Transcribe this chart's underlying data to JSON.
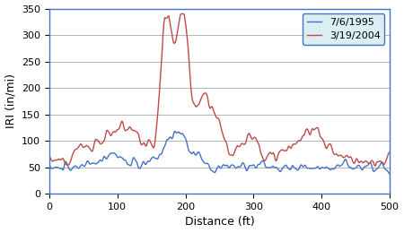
{
  "color_1995": "#4472C4",
  "color_2004": "#BE4B48",
  "label_1995": "7/6/1995",
  "label_2004": "3/19/2004",
  "xlabel": "Distance (ft)",
  "ylabel": "IRI (in/mi)",
  "xlim": [
    0,
    500
  ],
  "ylim": [
    0,
    350
  ],
  "xticks": [
    0,
    100,
    200,
    300,
    400,
    500
  ],
  "yticks": [
    0,
    50,
    100,
    150,
    200,
    250,
    300,
    350
  ],
  "figsize": [
    4.5,
    2.6
  ],
  "dpi": 100,
  "bg_color": "#FFFFFF",
  "grid_color": "#AAAAAA",
  "linewidth": 1.0,
  "legend_box_color": "#DAEEF3",
  "legend_edge_color": "#4472C4",
  "spine_color": "#4472C4"
}
